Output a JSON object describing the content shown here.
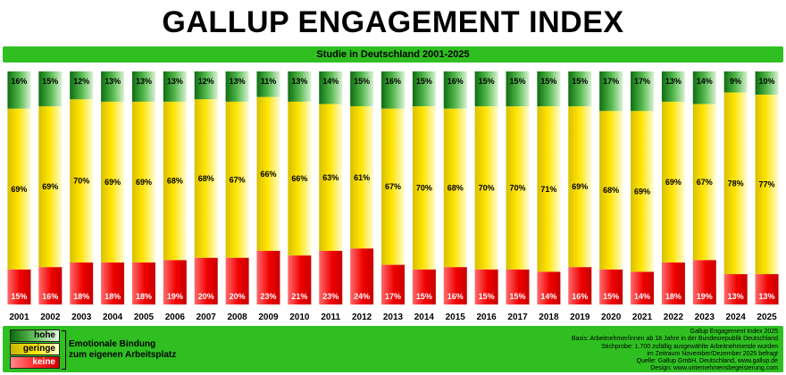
{
  "title": "GALLUP ENGAGEMENT INDEX",
  "subtitle": "Studie in Deutschland 2001-2025",
  "legend": {
    "hohe": "hohe",
    "geringe": "geringe",
    "keine": "keine",
    "label_line1": "Emotionale Bindung",
    "label_line2": "zum eigenen Arbeitsplatz"
  },
  "info": {
    "line1": "Gallup Engagement Index 2025",
    "line2": "Basis: Arbeitnehmer/innen ab 18 Jahre in der Bundesrepublik Deutschland",
    "line3": "Stichprobe: 1.700 zufällig ausgewählte Arbeitnehmende wurden",
    "line4": "im Zeitraum November/Dezember 2025 befragt",
    "line5": "Quelle: Gallup GmbH, Deutschland, www.gallup.de",
    "line6": "Design: www.unternehmensbegeisterung.com"
  },
  "colors": {
    "hohe": "#2f9a2a",
    "geringe": "#ffe000",
    "keine": "#e00000",
    "frame": "#2fbf21"
  },
  "chart_data": {
    "type": "bar",
    "stacked": true,
    "ylim": [
      0,
      100
    ],
    "categories": [
      "2001",
      "2002",
      "2003",
      "2004",
      "2005",
      "2006",
      "2007",
      "2008",
      "2009",
      "2010",
      "2011",
      "2012",
      "2013",
      "2014",
      "2015",
      "2016",
      "2017",
      "2018",
      "2019",
      "2020",
      "2021",
      "2022",
      "2023",
      "2024",
      "2025"
    ],
    "series": [
      {
        "name": "hohe",
        "values": [
          16,
          15,
          12,
          13,
          13,
          13,
          12,
          13,
          11,
          13,
          14,
          15,
          16,
          15,
          16,
          15,
          15,
          15,
          15,
          17,
          17,
          13,
          14,
          9,
          10
        ]
      },
      {
        "name": "geringe",
        "values": [
          69,
          69,
          70,
          69,
          69,
          68,
          68,
          67,
          66,
          66,
          63,
          61,
          67,
          70,
          68,
          70,
          70,
          71,
          69,
          68,
          69,
          69,
          67,
          78,
          77
        ]
      },
      {
        "name": "keine",
        "values": [
          15,
          16,
          18,
          18,
          18,
          19,
          20,
          20,
          23,
          21,
          23,
          24,
          17,
          15,
          16,
          15,
          15,
          14,
          16,
          15,
          14,
          18,
          19,
          13,
          13
        ]
      }
    ]
  }
}
